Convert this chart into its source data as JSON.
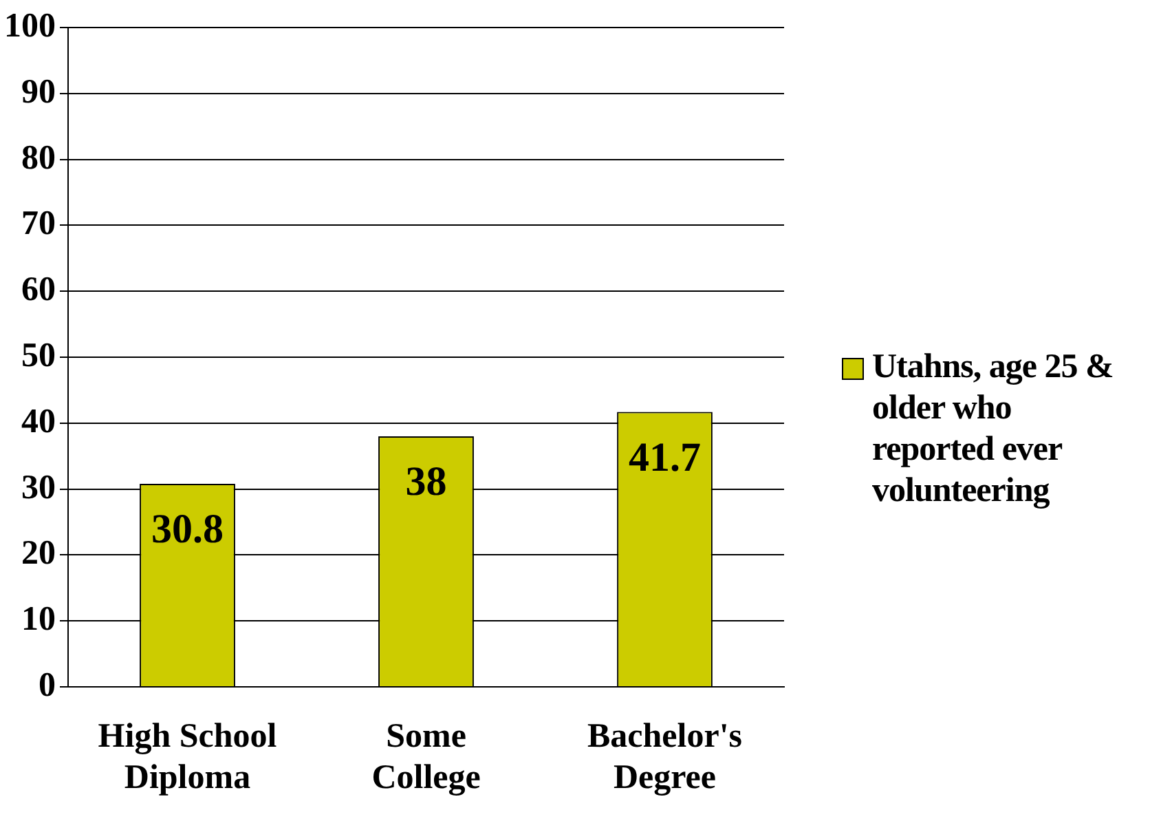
{
  "chart_data": {
    "type": "bar",
    "categories": [
      "High School Diploma",
      "Some College",
      "Bachelor's Degree"
    ],
    "series": [
      {
        "name": "Utahns, age 25 & older who reported ever volunteering",
        "color": "#cccc00",
        "values": [
          30.8,
          38,
          41.7
        ]
      }
    ],
    "ylim": [
      0,
      100
    ],
    "yticks": [
      0,
      10,
      20,
      30,
      40,
      50,
      60,
      70,
      80,
      90,
      100
    ],
    "grid": "y",
    "legend": "right",
    "data_labels": true
  }
}
